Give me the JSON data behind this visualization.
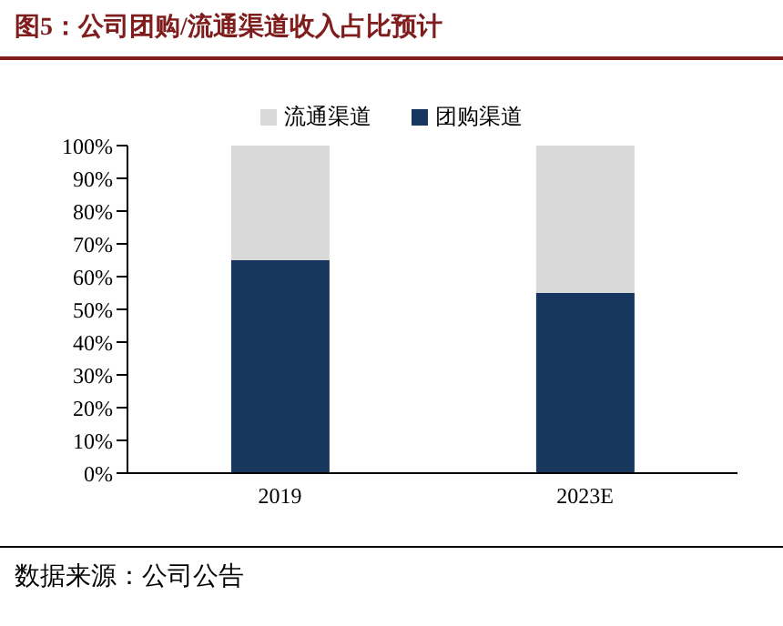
{
  "chart_data": {
    "type": "bar",
    "title": "图5：公司团购/流通渠道收入占比预计",
    "categories": [
      "2019",
      "2023E"
    ],
    "stacked": true,
    "legend": "top",
    "grid": false,
    "series": [
      {
        "name": "团购渠道",
        "color": "#17375e",
        "values": [
          65,
          55
        ]
      },
      {
        "name": "流通渠道",
        "color": "#d9d9d9",
        "values": [
          35,
          45
        ]
      }
    ],
    "ylim": [
      0,
      100
    ],
    "yticks": [
      {
        "value": 0,
        "label": "0%"
      },
      {
        "value": 10,
        "label": "10%"
      },
      {
        "value": 20,
        "label": "20%"
      },
      {
        "value": 30,
        "label": "30%"
      },
      {
        "value": 40,
        "label": "40%"
      },
      {
        "value": 50,
        "label": "50%"
      },
      {
        "value": 60,
        "label": "60%"
      },
      {
        "value": 70,
        "label": "70%"
      },
      {
        "value": 80,
        "label": "80%"
      },
      {
        "value": 90,
        "label": "90%"
      },
      {
        "value": 100,
        "label": "100%"
      }
    ],
    "annotations": [
      "数据来源：公司公告"
    ]
  }
}
